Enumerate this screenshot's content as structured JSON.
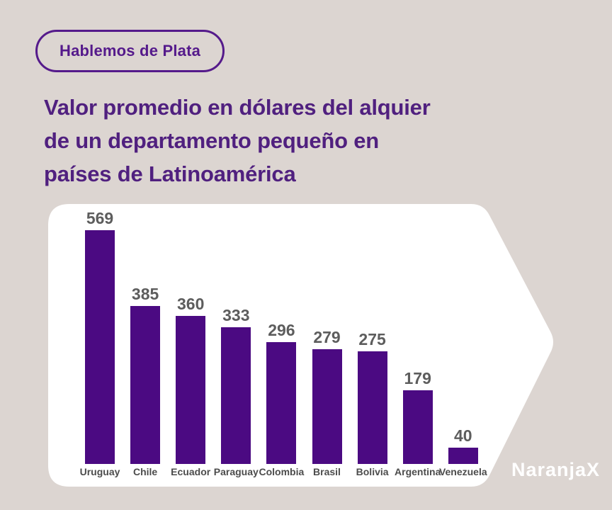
{
  "badge": {
    "label": "Hablemos de Plata"
  },
  "header": {
    "title_lines": [
      "Valor promedio en dólares del alquier",
      "de un departamento pequeño en",
      "países de Latinoamérica"
    ]
  },
  "chart_data": {
    "type": "bar",
    "title": "Valor promedio en dólares del alquier de un departamento pequeño en países de Latinoamérica",
    "categories": [
      "Uruguay",
      "Chile",
      "Ecuador",
      "Paraguay",
      "Colombia",
      "Brasil",
      "Bolivia",
      "Argentina",
      "Venezuela"
    ],
    "values": [
      569,
      385,
      360,
      333,
      296,
      279,
      275,
      179,
      40
    ],
    "xlabel": "",
    "ylabel": "",
    "ylim": [
      0,
      600
    ],
    "grid": false,
    "legend": false,
    "value_labels_shown": true,
    "bar_color": "#4b0a82",
    "value_label_color": "#5d5d5d",
    "category_label_color": "#4c4c4c"
  },
  "footer": {
    "logo_text": "NaranjaX"
  },
  "colors": {
    "background": "#dcd5d1",
    "accent_purple": "#551a8b",
    "title_purple": "#50207f",
    "bar_purple": "#4b0a82",
    "panel_white": "#ffffff"
  }
}
